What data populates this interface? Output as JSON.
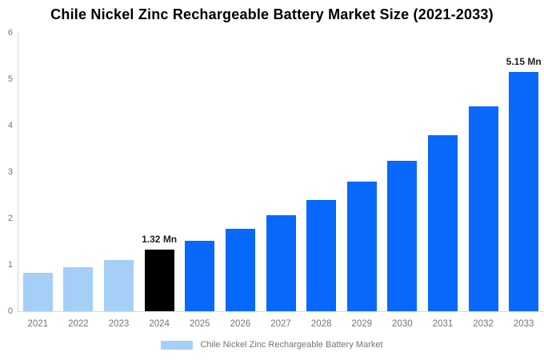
{
  "title": "Chile Nickel Zinc Rechargeable Battery Market Size (2021-2033)",
  "chart_data": {
    "type": "bar",
    "categories": [
      "2021",
      "2022",
      "2023",
      "2024",
      "2025",
      "2026",
      "2027",
      "2028",
      "2029",
      "2030",
      "2031",
      "2032",
      "2033"
    ],
    "values": [
      0.82,
      0.95,
      1.11,
      1.32,
      1.52,
      1.77,
      2.07,
      2.39,
      2.79,
      3.25,
      3.79,
      4.41,
      5.15
    ],
    "bar_colors": [
      "#A6CFF7",
      "#A6CFF7",
      "#A6CFF7",
      "#000000",
      "#0768FB",
      "#0768FB",
      "#0768FB",
      "#0768FB",
      "#0768FB",
      "#0768FB",
      "#0768FB",
      "#0768FB",
      "#0768FB"
    ],
    "title": "Chile Nickel Zinc Rechargeable Battery Market Size (2021-2033)",
    "xlabel": "",
    "ylabel": "",
    "ylim": [
      0,
      6
    ],
    "yticks": [
      0,
      1,
      2,
      3,
      4,
      5,
      6
    ],
    "grid": "off",
    "data_labels": [
      {
        "index": 3,
        "text": "1.32 Mn"
      },
      {
        "index": 12,
        "text": "5.15 Mn"
      }
    ],
    "legend": {
      "position": "bottom",
      "entries": [
        {
          "label": "Chile Nickel Zinc Rechargeable Battery Market",
          "color": "#A6CFF7"
        }
      ]
    }
  },
  "colors": {
    "background": "#ffffff",
    "axis_line": "#d9d9d9",
    "tick_text": "#757575",
    "title_text": "#000000",
    "data_label_text": "#222222",
    "light_blue_bar": "#A6CFF7",
    "blue_bar": "#0768FB",
    "black_bar": "#000000"
  }
}
